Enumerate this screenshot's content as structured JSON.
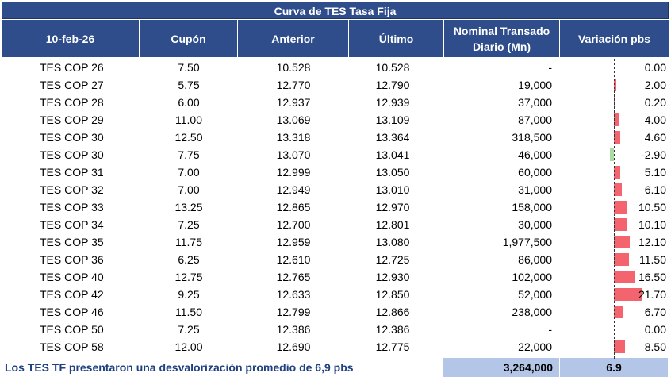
{
  "title": "Curva de TES Tasa Fija",
  "headers": {
    "date": "10-feb-26",
    "cupon": "Cupón",
    "anterior": "Anterior",
    "ultimo": "Último",
    "nominal_line1": "Nominal Transado",
    "nominal_line2": "Diario (Mn)",
    "variacion": "Variación pbs"
  },
  "rows": [
    {
      "name": "TES COP 26",
      "cupon": "7.50",
      "anterior": "10.528",
      "ultimo": "10.528",
      "nominal": "-",
      "variacion": "0.00",
      "var_value": 0.0
    },
    {
      "name": "TES COP 27",
      "cupon": "5.75",
      "anterior": "12.770",
      "ultimo": "12.790",
      "nominal": "19,000",
      "variacion": "2.00",
      "var_value": 2.0
    },
    {
      "name": "TES COP 28",
      "cupon": "6.00",
      "anterior": "12.937",
      "ultimo": "12.939",
      "nominal": "37,000",
      "variacion": "0.20",
      "var_value": 0.2
    },
    {
      "name": "TES COP 29",
      "cupon": "11.00",
      "anterior": "13.069",
      "ultimo": "13.109",
      "nominal": "87,000",
      "variacion": "4.00",
      "var_value": 4.0
    },
    {
      "name": "TES COP 30",
      "cupon": "12.50",
      "anterior": "13.318",
      "ultimo": "13.364",
      "nominal": "318,500",
      "variacion": "4.60",
      "var_value": 4.6
    },
    {
      "name": "TES COP 30",
      "cupon": "7.75",
      "anterior": "13.070",
      "ultimo": "13.041",
      "nominal": "46,000",
      "variacion": "-2.90",
      "var_value": -2.9
    },
    {
      "name": "TES COP 31",
      "cupon": "7.00",
      "anterior": "12.999",
      "ultimo": "13.050",
      "nominal": "60,000",
      "variacion": "5.10",
      "var_value": 5.1
    },
    {
      "name": "TES COP 32",
      "cupon": "7.00",
      "anterior": "12.949",
      "ultimo": "13.010",
      "nominal": "31,000",
      "variacion": "6.10",
      "var_value": 6.1
    },
    {
      "name": "TES COP 33",
      "cupon": "13.25",
      "anterior": "12.865",
      "ultimo": "12.970",
      "nominal": "158,000",
      "variacion": "10.50",
      "var_value": 10.5
    },
    {
      "name": "TES COP 34",
      "cupon": "7.25",
      "anterior": "12.700",
      "ultimo": "12.801",
      "nominal": "30,000",
      "variacion": "10.10",
      "var_value": 10.1
    },
    {
      "name": "TES COP 35",
      "cupon": "11.75",
      "anterior": "12.959",
      "ultimo": "13.080",
      "nominal": "1,977,500",
      "variacion": "12.10",
      "var_value": 12.1
    },
    {
      "name": "TES COP 36",
      "cupon": "6.25",
      "anterior": "12.610",
      "ultimo": "12.725",
      "nominal": "86,000",
      "variacion": "11.50",
      "var_value": 11.5
    },
    {
      "name": "TES COP 40",
      "cupon": "12.75",
      "anterior": "12.765",
      "ultimo": "12.930",
      "nominal": "102,000",
      "variacion": "16.50",
      "var_value": 16.5
    },
    {
      "name": "TES COP 42",
      "cupon": "9.25",
      "anterior": "12.633",
      "ultimo": "12.850",
      "nominal": "52,000",
      "variacion": "21.70",
      "var_value": 21.7
    },
    {
      "name": "TES COP 46",
      "cupon": "11.50",
      "anterior": "12.799",
      "ultimo": "12.866",
      "nominal": "238,000",
      "variacion": "6.70",
      "var_value": 6.7
    },
    {
      "name": "TES COP 50",
      "cupon": "7.25",
      "anterior": "12.386",
      "ultimo": "12.386",
      "nominal": "-",
      "variacion": "0.00",
      "var_value": 0.0
    },
    {
      "name": "TES COP 58",
      "cupon": "12.00",
      "anterior": "12.690",
      "ultimo": "12.775",
      "nominal": "22,000",
      "variacion": "8.50",
      "var_value": 8.5
    }
  ],
  "footer": {
    "text": "Los TES TF presentaron una desvalorización promedio de 6,9 pbs",
    "total_nominal": "3,264,000",
    "avg_variacion": "6.9"
  },
  "colors": {
    "header_bg": "#2e4d8a",
    "positive_bar": "#f4646e",
    "negative_bar": "#a9dba4",
    "total_bg": "#b4c6e7",
    "footer_text": "#1f3f80"
  }
}
